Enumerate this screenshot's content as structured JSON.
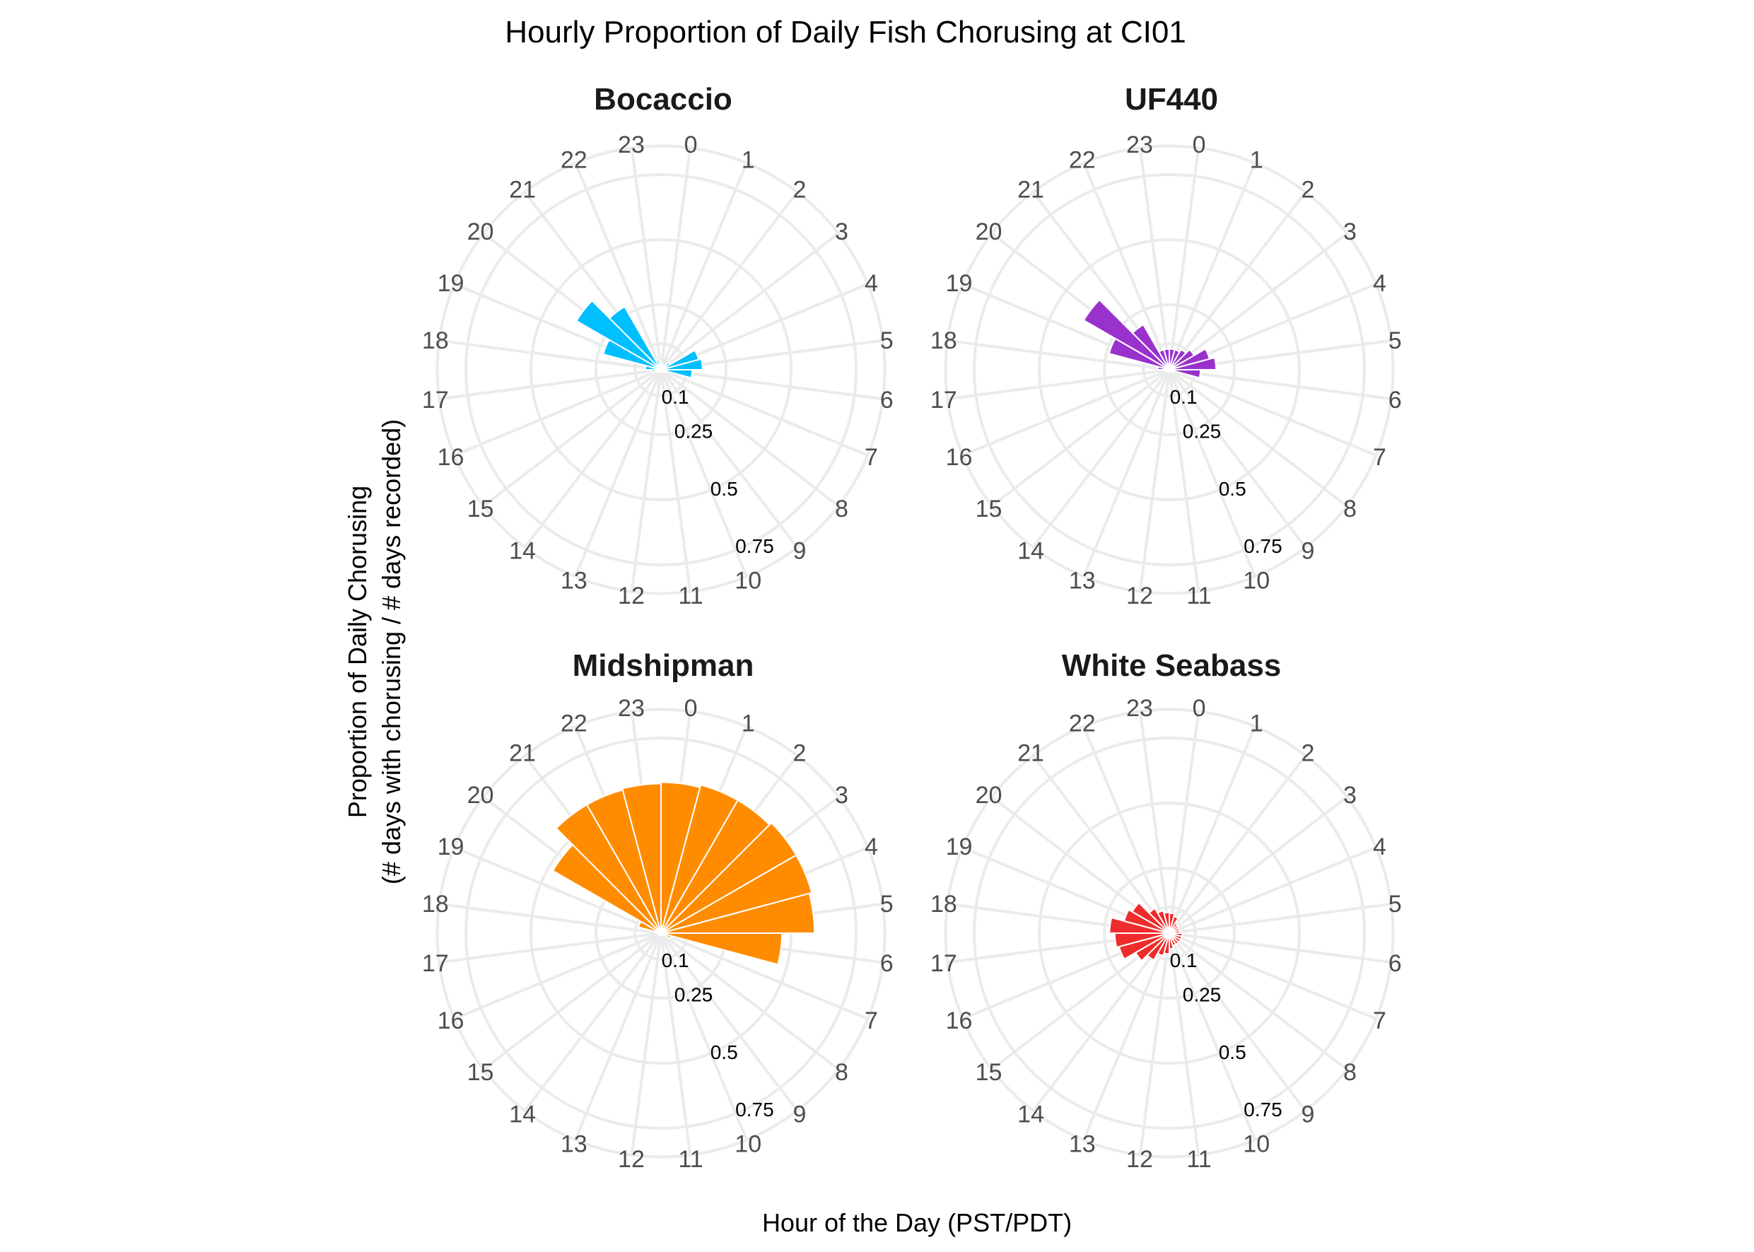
{
  "title": "Hourly Proportion of Daily Fish Chorusing at CI01",
  "xlabel": "Hour of the Day (PST/PDT)",
  "ylabel_lines": [
    "Proportion of Daily Chorusing",
    "(# days with chorusing / # days recorded)"
  ],
  "grid_color": "#EBEBEB",
  "chart_data": [
    {
      "type": "bar",
      "coord": "polar",
      "title": "Bocaccio",
      "color": "#00BFFF",
      "categories": [
        "0",
        "1",
        "2",
        "3",
        "4",
        "5",
        "6",
        "7",
        "8",
        "9",
        "10",
        "11",
        "12",
        "13",
        "14",
        "15",
        "16",
        "17",
        "18",
        "19",
        "20",
        "21",
        "22",
        "23"
      ],
      "values": [
        0.02,
        0.02,
        0.02,
        0.04,
        0.15,
        0.16,
        0.12,
        0.02,
        0.01,
        0.01,
        0.01,
        0.01,
        0.01,
        0.01,
        0.01,
        0.01,
        0.02,
        0.035,
        0.06,
        0.23,
        0.375,
        0.28,
        0.04,
        0.03
      ],
      "radial_ticks": [
        "0.1",
        "0.25",
        "0.5",
        "0.75"
      ],
      "ylim": [
        0,
        0.86
      ]
    },
    {
      "type": "bar",
      "coord": "polar",
      "title": "UF440",
      "color": "#9932CC",
      "categories": [
        "0",
        "1",
        "2",
        "3",
        "4",
        "5",
        "6",
        "7",
        "8",
        "9",
        "10",
        "11",
        "12",
        "13",
        "14",
        "15",
        "16",
        "17",
        "18",
        "19",
        "20",
        "21",
        "22",
        "23"
      ],
      "values": [
        0.08,
        0.08,
        0.09,
        0.11,
        0.16,
        0.18,
        0.12,
        0.02,
        0.01,
        0.01,
        0.01,
        0.01,
        0.01,
        0.01,
        0.01,
        0.01,
        0.01,
        0.02,
        0.045,
        0.24,
        0.38,
        0.2,
        0.08,
        0.08
      ],
      "radial_ticks": [
        "0.1",
        "0.25",
        "0.5",
        "0.75"
      ],
      "ylim": [
        0,
        0.86
      ]
    },
    {
      "type": "bar",
      "coord": "polar",
      "title": "Midshipman",
      "color": "#FF8C00",
      "categories": [
        "0",
        "1",
        "2",
        "3",
        "4",
        "5",
        "6",
        "7",
        "8",
        "9",
        "10",
        "11",
        "12",
        "13",
        "14",
        "15",
        "16",
        "17",
        "18",
        "19",
        "20",
        "21",
        "22",
        "23"
      ],
      "values": [
        0.58,
        0.59,
        0.59,
        0.6,
        0.6,
        0.59,
        0.465,
        0.04,
        0.01,
        0.01,
        0.01,
        0.01,
        0.01,
        0.01,
        0.01,
        0.01,
        0.01,
        0.01,
        0.02,
        0.09,
        0.48,
        0.57,
        0.57,
        0.575
      ],
      "radial_ticks": [
        "0.1",
        "0.25",
        "0.5",
        "0.75"
      ],
      "ylim": [
        0,
        0.86
      ]
    },
    {
      "type": "bar",
      "coord": "polar",
      "title": "White Seabass",
      "color": "#EE2C2C",
      "categories": [
        "0",
        "1",
        "2",
        "3",
        "4",
        "5",
        "6",
        "7",
        "8",
        "9",
        "10",
        "11",
        "12",
        "13",
        "14",
        "15",
        "16",
        "17",
        "18",
        "19",
        "20",
        "21",
        "22",
        "23"
      ],
      "values": [
        0.077,
        0.067,
        0.045,
        0.04,
        0.04,
        0.04,
        0.05,
        0.05,
        0.05,
        0.05,
        0.05,
        0.06,
        0.08,
        0.09,
        0.12,
        0.15,
        0.2,
        0.21,
        0.23,
        0.18,
        0.165,
        0.11,
        0.09,
        0.08
      ],
      "radial_ticks": [
        "0.1",
        "0.25",
        "0.5",
        "0.75"
      ],
      "ylim": [
        0,
        0.86
      ]
    }
  ]
}
